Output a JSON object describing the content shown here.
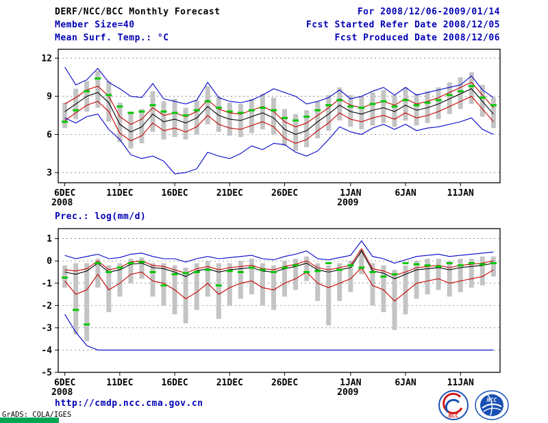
{
  "header": {
    "title": "DERF/NCC/BCC Monthly Forecast",
    "for_range": "For 2008/12/06-2009/01/14",
    "member_size": "Member Size=40",
    "refer_date": "Fcst Started Refer Date 2008/12/05",
    "produced_date": "Fcst Produced Date 2008/12/06"
  },
  "footer": {
    "url": "http://cmdp.ncc.cma.gov.cn",
    "credit": "GrADS: COLA/IGES",
    "bcc_logo_label": "BCC",
    "ncc_logo_label": "NCC"
  },
  "colors": {
    "accent_blue_text": "#0000b4",
    "line_blue": "#0000c8",
    "line_red": "#c80000",
    "line_black": "#000000",
    "obs_green": "#00c800",
    "bar_gray": "#c4c4c4"
  },
  "chart_data": [
    {
      "type": "line",
      "title": "Mean Surf. Temp.: °C",
      "ylabel": "Mean Surf. Temp. (°C)",
      "xlim": [
        -0.6,
        39.6
      ],
      "ylim": [
        2.2,
        12.7
      ],
      "yticks": [
        3,
        6,
        9,
        12
      ],
      "grid": "horizontal-dashed",
      "legend": "none",
      "xticks": [
        {
          "day": 0,
          "label": "6DEC",
          "sub": "2008"
        },
        {
          "day": 5,
          "label": "11DEC"
        },
        {
          "day": 10,
          "label": "16DEC"
        },
        {
          "day": 15,
          "label": "21DEC"
        },
        {
          "day": 20,
          "label": "26DEC"
        },
        {
          "day": 26,
          "label": "1JAN",
          "sub": "2009"
        },
        {
          "day": 31,
          "label": "6JAN"
        },
        {
          "day": 36,
          "label": "11JAN"
        }
      ],
      "series": [
        {
          "name": "ensemble-max",
          "color": "#0000c8",
          "type": "line",
          "values": [
            11.3,
            9.9,
            10.3,
            11.2,
            10.1,
            9.6,
            9.0,
            8.9,
            10.0,
            8.8,
            8.6,
            8.4,
            8.7,
            10.1,
            8.9,
            8.6,
            8.5,
            8.7,
            9.1,
            9.6,
            9.3,
            9.0,
            8.4,
            8.6,
            8.9,
            9.5,
            8.8,
            9.0,
            9.4,
            9.7,
            9.1,
            9.7,
            9.1,
            9.3,
            9.5,
            9.7,
            9.9,
            10.6,
            9.5,
            8.9
          ]
        },
        {
          "name": "upper-quantile",
          "color": "#c80000",
          "type": "line",
          "values": [
            8.4,
            8.9,
            9.5,
            9.8,
            9.0,
            7.4,
            6.8,
            7.2,
            8.1,
            7.5,
            7.7,
            7.4,
            7.8,
            8.7,
            8.0,
            7.7,
            7.6,
            7.9,
            8.2,
            7.8,
            7.0,
            6.6,
            6.9,
            7.5,
            8.1,
            8.8,
            8.3,
            8.1,
            8.4,
            8.6,
            8.3,
            8.8,
            8.4,
            8.6,
            8.9,
            9.3,
            9.7,
            10.1,
            9.1,
            8.1
          ]
        },
        {
          "name": "ensemble-mean",
          "color": "#000000",
          "type": "line",
          "values": [
            7.8,
            8.4,
            9.0,
            9.3,
            8.5,
            6.8,
            6.2,
            6.6,
            7.6,
            7.0,
            7.2,
            6.9,
            7.3,
            8.2,
            7.5,
            7.2,
            7.1,
            7.4,
            7.7,
            7.3,
            6.4,
            6.0,
            6.3,
            7.0,
            7.6,
            8.3,
            7.8,
            7.6,
            7.9,
            8.1,
            7.8,
            8.3,
            7.9,
            8.1,
            8.4,
            8.8,
            9.2,
            9.6,
            8.6,
            7.6
          ]
        },
        {
          "name": "lower-quantile",
          "color": "#c80000",
          "type": "line",
          "values": [
            7.1,
            7.7,
            8.3,
            8.6,
            7.8,
            6.1,
            5.5,
            5.9,
            6.9,
            6.3,
            6.5,
            6.2,
            6.6,
            7.5,
            6.8,
            6.5,
            6.4,
            6.7,
            7.0,
            6.6,
            5.7,
            5.3,
            5.6,
            6.3,
            6.9,
            7.7,
            7.2,
            7.0,
            7.3,
            7.5,
            7.2,
            7.7,
            7.3,
            7.5,
            7.8,
            8.2,
            8.6,
            9.0,
            8.0,
            7.0
          ]
        },
        {
          "name": "ensemble-min",
          "color": "#0000c8",
          "type": "line",
          "values": [
            7.3,
            6.9,
            7.4,
            7.6,
            6.4,
            5.6,
            4.4,
            4.1,
            4.3,
            3.9,
            2.9,
            3.0,
            3.3,
            4.6,
            4.3,
            4.1,
            4.5,
            5.1,
            4.8,
            5.3,
            5.2,
            4.6,
            4.3,
            4.7,
            5.6,
            6.6,
            6.2,
            6.0,
            6.5,
            6.8,
            6.4,
            6.8,
            6.3,
            6.5,
            6.6,
            6.8,
            7.0,
            7.3,
            6.4,
            6.0
          ]
        },
        {
          "name": "observation-marks",
          "color": "#00c800",
          "type": "dash",
          "values": [
            7.0,
            7.9,
            9.4,
            10.4,
            9.1,
            8.2,
            7.7,
            7.8,
            8.3,
            7.8,
            7.7,
            7.5,
            7.9,
            8.6,
            8.1,
            7.8,
            7.7,
            7.9,
            8.1,
            7.9,
            7.3,
            7.1,
            7.4,
            7.9,
            8.3,
            8.7,
            8.2,
            8.1,
            8.4,
            8.6,
            8.2,
            8.7,
            8.3,
            8.5,
            8.7,
            9.1,
            9.4,
            9.8,
            8.9,
            8.3
          ]
        }
      ],
      "bars": {
        "name": "ensemble-spread-bars",
        "color": "#c4c4c4",
        "high": [
          8.5,
          9.6,
          10.2,
          11.0,
          10.2,
          8.5,
          7.8,
          8.0,
          9.4,
          8.6,
          8.8,
          8.1,
          8.7,
          9.8,
          9.0,
          8.5,
          8.4,
          8.8,
          9.2,
          8.9,
          8.0,
          7.6,
          7.9,
          8.6,
          9.1,
          9.7,
          9.1,
          9.0,
          9.3,
          9.5,
          9.1,
          9.7,
          9.2,
          9.4,
          9.7,
          10.1,
          10.5,
          10.9,
          9.9,
          8.9
        ],
        "low": [
          6.5,
          7.2,
          7.8,
          8.1,
          7.0,
          5.4,
          4.9,
          5.3,
          6.2,
          5.6,
          5.8,
          5.6,
          6.0,
          6.8,
          6.2,
          5.9,
          5.8,
          6.1,
          6.4,
          6.0,
          5.1,
          4.7,
          5.0,
          5.7,
          6.3,
          7.1,
          6.6,
          6.4,
          6.7,
          6.9,
          6.6,
          7.1,
          6.7,
          6.9,
          7.2,
          7.6,
          8.0,
          8.4,
          7.4,
          6.5
        ]
      }
    },
    {
      "type": "line",
      "title": "Prec.: log(mm/d)",
      "ylabel": "Prec. log(mm/d)",
      "xlim": [
        -0.6,
        39.6
      ],
      "ylim": [
        -5,
        1.45
      ],
      "yticks": [
        -5,
        -4,
        -3,
        -2,
        -1,
        0,
        1
      ],
      "grid": "horizontal-dashed",
      "legend": "none",
      "xticks": [
        {
          "day": 0,
          "label": "6DEC",
          "sub": "2008"
        },
        {
          "day": 5,
          "label": "11DEC"
        },
        {
          "day": 10,
          "label": "16DEC"
        },
        {
          "day": 15,
          "label": "21DEC"
        },
        {
          "day": 20,
          "label": "26DEC"
        },
        {
          "day": 26,
          "label": "1JAN",
          "sub": "2009"
        },
        {
          "day": 31,
          "label": "6JAN"
        },
        {
          "day": 36,
          "label": "11JAN"
        }
      ],
      "series": [
        {
          "name": "ensemble-max",
          "color": "#0000c8",
          "type": "line",
          "values": [
            0.25,
            0.1,
            0.2,
            0.3,
            0.1,
            0.15,
            0.3,
            0.35,
            0.2,
            0.1,
            0.1,
            -0.05,
            0.1,
            0.2,
            0.1,
            0.15,
            0.2,
            0.25,
            0.1,
            0.05,
            0.2,
            0.3,
            0.45,
            0.1,
            0.05,
            0.15,
            0.25,
            0.9,
            0.2,
            0.1,
            -0.1,
            0.05,
            0.2,
            0.25,
            0.3,
            0.2,
            0.25,
            0.3,
            0.35,
            0.4
          ]
        },
        {
          "name": "upper-quantile",
          "color": "#c80000",
          "type": "line",
          "values": [
            -0.4,
            -0.45,
            -0.35,
            0.0,
            -0.4,
            -0.3,
            -0.05,
            0.0,
            -0.2,
            -0.25,
            -0.4,
            -0.55,
            -0.35,
            -0.25,
            -0.4,
            -0.3,
            -0.25,
            -0.2,
            -0.35,
            -0.4,
            -0.25,
            -0.15,
            0.0,
            -0.3,
            -0.4,
            -0.3,
            -0.2,
            0.55,
            -0.35,
            -0.45,
            -0.65,
            -0.5,
            -0.3,
            -0.25,
            -0.2,
            -0.3,
            -0.2,
            -0.15,
            -0.1,
            0.0
          ]
        },
        {
          "name": "ensemble-mean",
          "color": "#000000",
          "type": "line",
          "values": [
            -0.5,
            -0.6,
            -0.45,
            -0.1,
            -0.5,
            -0.4,
            -0.15,
            -0.1,
            -0.3,
            -0.35,
            -0.5,
            -0.7,
            -0.45,
            -0.35,
            -0.5,
            -0.4,
            -0.35,
            -0.3,
            -0.45,
            -0.5,
            -0.35,
            -0.25,
            -0.1,
            -0.4,
            -0.5,
            -0.4,
            -0.3,
            0.45,
            -0.45,
            -0.55,
            -0.8,
            -0.6,
            -0.4,
            -0.35,
            -0.3,
            -0.4,
            -0.3,
            -0.25,
            -0.2,
            -0.1
          ]
        },
        {
          "name": "lower-quantile",
          "color": "#c80000",
          "type": "line",
          "values": [
            -0.9,
            -1.5,
            -1.3,
            -0.6,
            -1.3,
            -1.0,
            -0.6,
            -0.5,
            -0.9,
            -1.0,
            -1.3,
            -1.7,
            -1.4,
            -1.0,
            -1.5,
            -1.2,
            -1.0,
            -0.9,
            -1.2,
            -1.3,
            -1.0,
            -0.8,
            -0.5,
            -1.0,
            -1.2,
            -1.0,
            -0.8,
            -0.3,
            -1.1,
            -1.3,
            -1.8,
            -1.4,
            -1.0,
            -0.9,
            -0.8,
            -1.0,
            -0.9,
            -0.8,
            -0.7,
            -0.4
          ]
        },
        {
          "name": "ensemble-min",
          "color": "#0000c8",
          "type": "line",
          "values": [
            -2.4,
            -3.2,
            -3.8,
            -4,
            -4,
            -4,
            -4,
            -4,
            -4,
            -4,
            -4,
            -4,
            -4,
            -4,
            -4,
            -4,
            -4,
            -4,
            -4,
            -4,
            -4,
            -4,
            -4,
            -4,
            -4,
            -4,
            -4,
            -4,
            -4,
            -4,
            -4,
            -4,
            -4,
            -4,
            -4,
            -4,
            -4,
            -4,
            -4,
            -4
          ]
        },
        {
          "name": "observation-marks",
          "color": "#00c800",
          "type": "dash",
          "values": [
            -0.75,
            -2.2,
            -2.85,
            -0.1,
            -0.5,
            -0.3,
            -0.1,
            -0.05,
            -0.5,
            -1.1,
            -0.6,
            -0.55,
            -0.5,
            -0.4,
            -1.1,
            -0.45,
            -0.5,
            -0.3,
            -0.4,
            -0.5,
            -0.3,
            -0.2,
            -0.5,
            -0.45,
            -0.1,
            -0.4,
            -0.2,
            -0.3,
            -0.5,
            -0.7,
            -0.6,
            -0.1,
            -0.15,
            -0.2,
            -0.25,
            -0.1,
            -0.2,
            -0.1,
            -0.15,
            -0.1
          ]
        }
      ],
      "bars": {
        "name": "ensemble-spread-bars",
        "color": "#c4c4c4",
        "high": [
          -0.2,
          -0.1,
          -0.1,
          0.1,
          -0.2,
          -0.1,
          0.1,
          0.15,
          -0.1,
          -0.1,
          -0.2,
          -0.3,
          -0.1,
          0.0,
          -0.1,
          -0.1,
          0.0,
          0.1,
          -0.1,
          -0.2,
          0.0,
          0.1,
          0.2,
          -0.1,
          -0.2,
          -0.1,
          0.0,
          0.5,
          -0.1,
          -0.2,
          -0.4,
          -0.2,
          0.0,
          0.1,
          0.1,
          0.0,
          0.1,
          0.1,
          0.2,
          0.2
        ],
        "low": [
          -1.2,
          -3.3,
          -3.6,
          -1.2,
          -2.3,
          -1.6,
          -1.0,
          -0.8,
          -1.6,
          -2.0,
          -2.4,
          -2.8,
          -2.2,
          -1.6,
          -2.6,
          -2.0,
          -1.7,
          -1.5,
          -2.0,
          -2.2,
          -1.6,
          -1.3,
          -0.9,
          -1.8,
          -2.9,
          -1.8,
          -1.4,
          -0.6,
          -2.0,
          -2.3,
          -3.1,
          -2.4,
          -1.7,
          -1.5,
          -1.3,
          -1.6,
          -1.4,
          -1.2,
          -1.1,
          -0.7
        ]
      }
    }
  ]
}
